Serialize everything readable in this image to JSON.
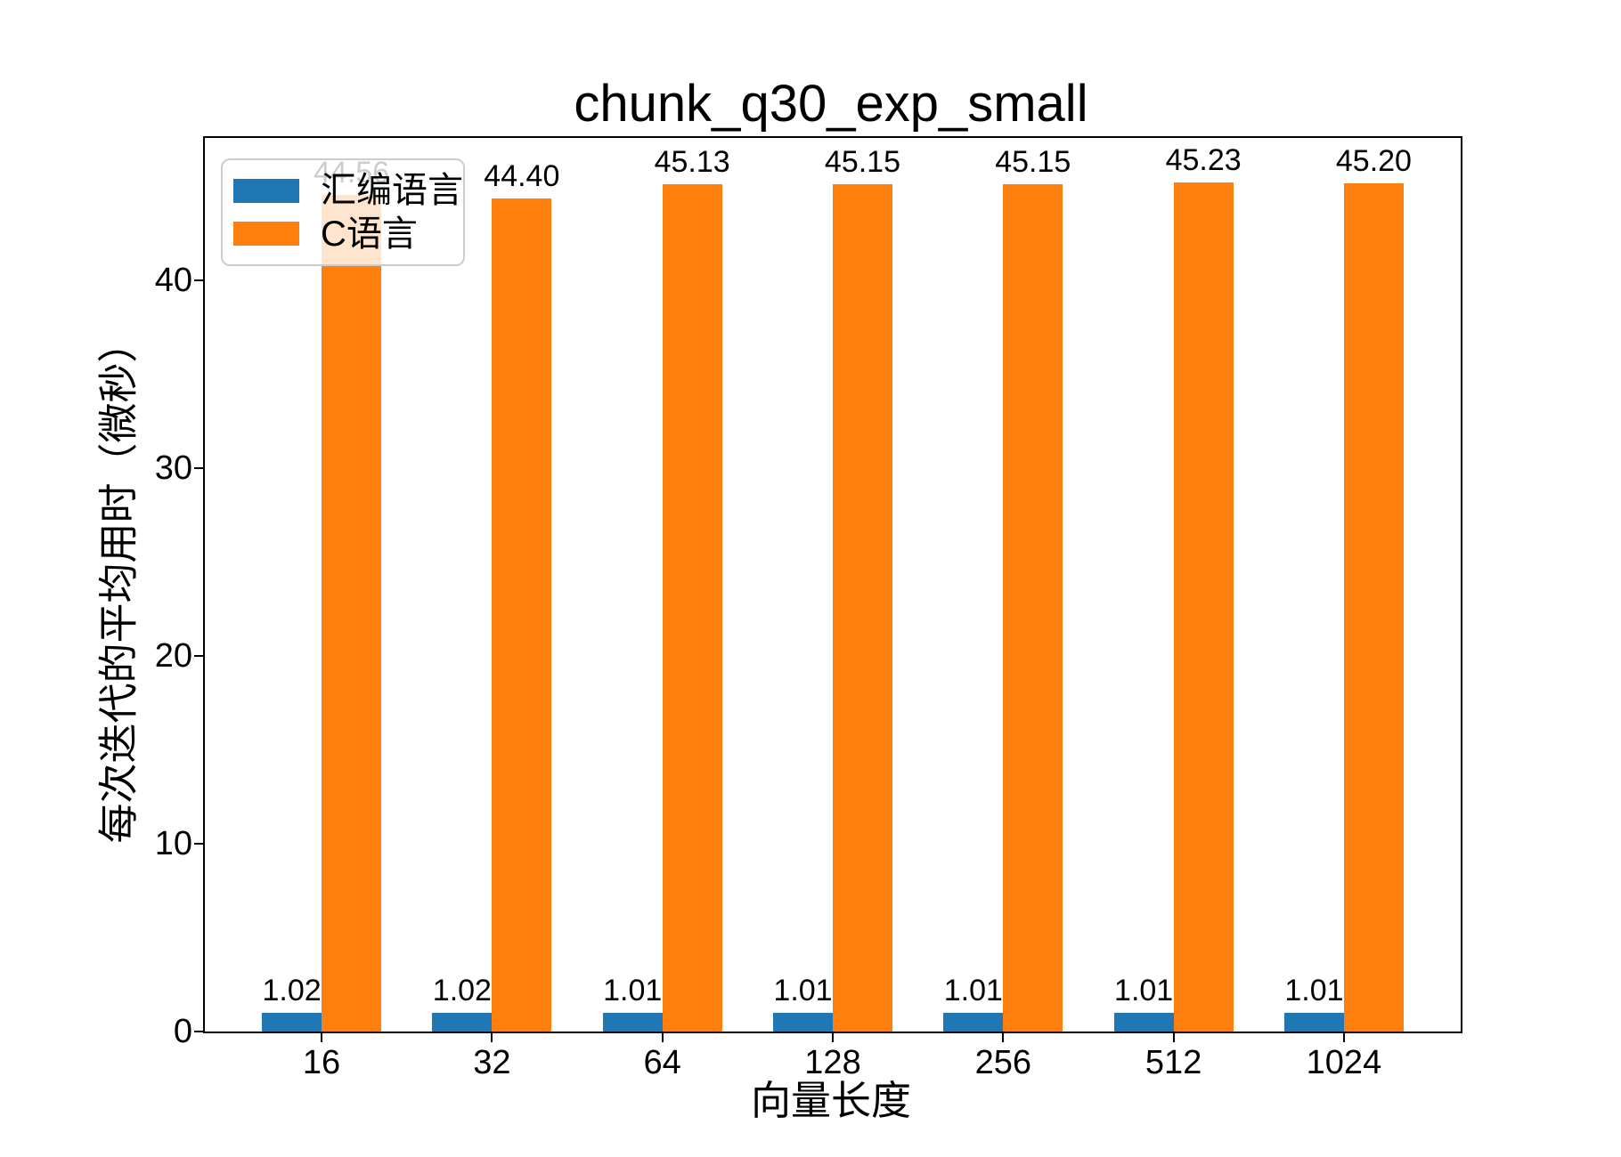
{
  "chart_data": {
    "type": "bar",
    "title": "chunk_q30_exp_small",
    "xlabel": "向量长度",
    "ylabel": "每次迭代的平均用时（微秒）",
    "categories": [
      "16",
      "32",
      "64",
      "128",
      "256",
      "512",
      "1024"
    ],
    "series": [
      {
        "name": "汇编语言",
        "color": "#1f77b4",
        "values": [
          1.02,
          1.02,
          1.01,
          1.01,
          1.01,
          1.01,
          1.01
        ],
        "labels": [
          "1.02",
          "1.02",
          "1.01",
          "1.01",
          "1.01",
          "1.01",
          "1.01"
        ]
      },
      {
        "name": "C语言",
        "color": "#ff7f0e",
        "values": [
          44.56,
          44.4,
          45.13,
          45.15,
          45.15,
          45.23,
          45.2
        ],
        "labels": [
          "44.56",
          "44.40",
          "45.13",
          "45.15",
          "45.15",
          "45.23",
          "45.20"
        ]
      }
    ],
    "ylim": [
      0,
      47.6
    ],
    "yticks": [
      0,
      10,
      20,
      30,
      40
    ],
    "ytick_labels": [
      "0",
      "10",
      "20",
      "30",
      "40"
    ],
    "bar_width_fraction": 0.35,
    "x_margin": 0.685,
    "grid": false,
    "legend_position": "upper-left",
    "background_color": "#ffffff",
    "spine_color": "#000000",
    "legend_border_color": "#cccccc"
  }
}
